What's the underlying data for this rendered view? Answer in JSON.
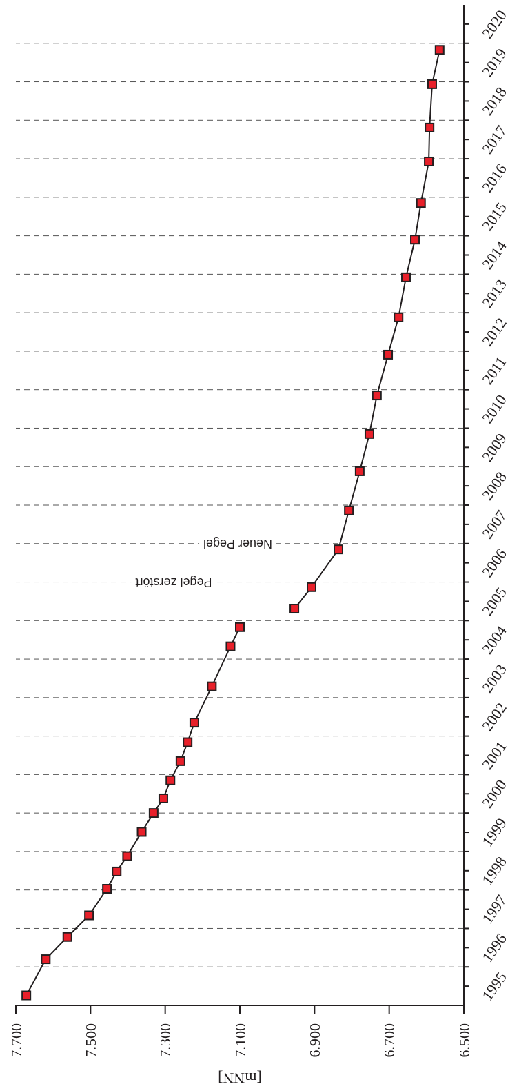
{
  "chart_data": {
    "type": "line",
    "orientation": "horizontal",
    "xlabel": "[mNN]",
    "xlim": [
      7.7,
      6.5
    ],
    "xticks": [
      {
        "value": 7.7,
        "label": "7.700"
      },
      {
        "value": 7.5,
        "label": "7.500"
      },
      {
        "value": 7.3,
        "label": "7.300"
      },
      {
        "value": 7.1,
        "label": "7.100"
      },
      {
        "value": 6.9,
        "label": "6.900"
      },
      {
        "value": 6.7,
        "label": "6.700"
      },
      {
        "value": 6.5,
        "label": "6.500"
      }
    ],
    "ylim": [
      1995,
      2021
    ],
    "yticks": [
      {
        "value": 1995.5,
        "label": "1995"
      },
      {
        "value": 1996,
        "label": null
      },
      {
        "value": 1996.5,
        "label": "1996"
      },
      {
        "value": 1997,
        "label": null
      },
      {
        "value": 1997.5,
        "label": "1997"
      },
      {
        "value": 1998,
        "label": null
      },
      {
        "value": 1998.5,
        "label": "1998"
      },
      {
        "value": 1999,
        "label": null
      },
      {
        "value": 1999.5,
        "label": "1999"
      },
      {
        "value": 2000,
        "label": null
      },
      {
        "value": 2000.5,
        "label": "2000"
      },
      {
        "value": 2001,
        "label": null
      },
      {
        "value": 2001.5,
        "label": "2001"
      },
      {
        "value": 2002,
        "label": null
      },
      {
        "value": 2002.5,
        "label": "2002"
      },
      {
        "value": 2003,
        "label": null
      },
      {
        "value": 2003.5,
        "label": "2003"
      },
      {
        "value": 2004,
        "label": null
      },
      {
        "value": 2004.5,
        "label": "2004"
      },
      {
        "value": 2005,
        "label": null
      },
      {
        "value": 2005.5,
        "label": "2005"
      },
      {
        "value": 2006,
        "label": null
      },
      {
        "value": 2006.5,
        "label": "2006"
      },
      {
        "value": 2007,
        "label": null
      },
      {
        "value": 2007.5,
        "label": "2007"
      },
      {
        "value": 2008,
        "label": null
      },
      {
        "value": 2008.5,
        "label": "2008"
      },
      {
        "value": 2009,
        "label": null
      },
      {
        "value": 2009.5,
        "label": "2009"
      },
      {
        "value": 2010,
        "label": null
      },
      {
        "value": 2010.5,
        "label": "2010"
      },
      {
        "value": 2011,
        "label": null
      },
      {
        "value": 2011.5,
        "label": "2011"
      },
      {
        "value": 2012,
        "label": null
      },
      {
        "value": 2012.5,
        "label": "2012"
      },
      {
        "value": 2013,
        "label": null
      },
      {
        "value": 2013.5,
        "label": "2013"
      },
      {
        "value": 2014,
        "label": null
      },
      {
        "value": 2014.5,
        "label": "2014"
      },
      {
        "value": 2015,
        "label": null
      },
      {
        "value": 2015.5,
        "label": "2015"
      },
      {
        "value": 2016,
        "label": null
      },
      {
        "value": 2016.5,
        "label": "2016"
      },
      {
        "value": 2017,
        "label": null
      },
      {
        "value": 2017.5,
        "label": "2017"
      },
      {
        "value": 2018,
        "label": null
      },
      {
        "value": 2018.5,
        "label": "2018"
      },
      {
        "value": 2019,
        "label": null
      },
      {
        "value": 2019.5,
        "label": "2019"
      },
      {
        "value": 2020,
        "label": null
      },
      {
        "value": 2020.5,
        "label": "2020"
      }
    ],
    "grid": "y",
    "marker": "square",
    "line_style": "solid",
    "series": [
      {
        "color": "#e8202a",
        "x": [
          1995.26,
          1996.2,
          1996.78,
          1997.34,
          1998.03,
          1998.48,
          1998.88,
          1999.51,
          2000.0,
          2000.38,
          2000.85,
          2001.35,
          2001.84,
          2002.35,
          2003.29,
          2004.33,
          2004.83
        ],
        "values": [
          7.672,
          7.62,
          7.562,
          7.504,
          7.456,
          7.43,
          7.402,
          7.363,
          7.331,
          7.305,
          7.286,
          7.259,
          7.24,
          7.222,
          7.175,
          7.125,
          7.1
        ]
      },
      {
        "color": "#e8202a",
        "x": [
          2005.31,
          2005.87,
          2006.85,
          2007.86,
          2008.88,
          2009.85,
          2010.85,
          2011.91,
          2012.88,
          2013.92,
          2014.9,
          2015.85,
          2016.93,
          2017.81,
          2018.94,
          2019.83
        ],
        "values": [
          6.954,
          6.908,
          6.836,
          6.808,
          6.779,
          6.753,
          6.733,
          6.703,
          6.675,
          6.655,
          6.631,
          6.615,
          6.594,
          6.592,
          6.585,
          6.565
        ]
      }
    ],
    "annotations": [
      "Pegel zerstört",
      "Neuer Pegel"
    ]
  }
}
